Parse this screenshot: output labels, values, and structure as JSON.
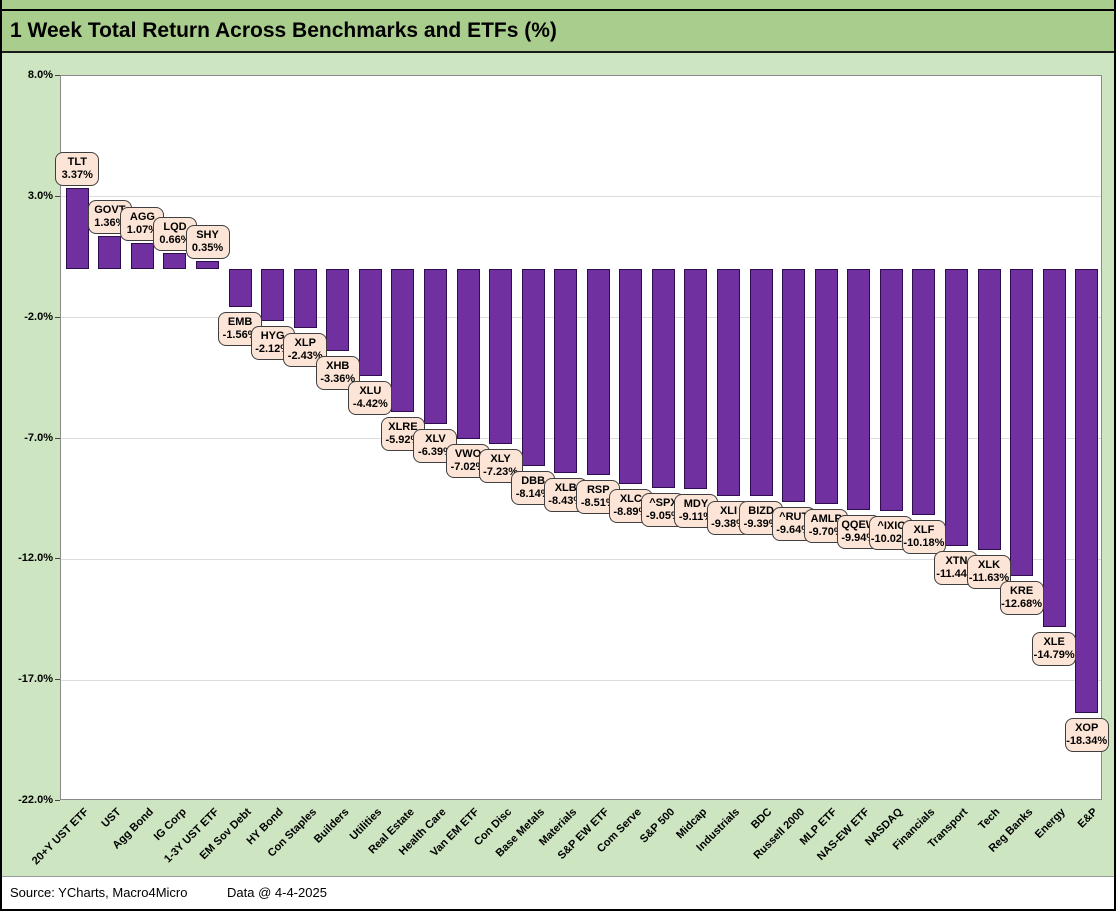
{
  "title": "1 Week Total Return Across Benchmarks and ETFs (%)",
  "footer": {
    "source": "Source: YCharts, Macro4Micro",
    "data_date": "Data @ 4-4-2025"
  },
  "colors": {
    "bar_fill": "#7030A0",
    "bar_border": "#2E0E4F",
    "label_box_fill": "#FCE4D6",
    "label_box_border": "#3F3F3F",
    "banner_green": "#A9CD8C",
    "body_green": "#CDE5C1",
    "plot_background": "#FFFFFF",
    "gridline": "#DCDCDC"
  },
  "chart_data": {
    "type": "bar",
    "title": "1 Week Total Return Across Benchmarks and ETFs (%)",
    "xlabel": "",
    "ylabel": "",
    "ylim": [
      -22,
      8
    ],
    "grid": "horizontal",
    "legend": "none",
    "y_ticks": [
      {
        "label": "8.0%",
        "value": 8
      },
      {
        "label": "3.0%",
        "value": 3
      },
      {
        "label": "-2.0%",
        "value": -2
      },
      {
        "label": "-7.0%",
        "value": -7
      },
      {
        "label": "-12.0%",
        "value": -12
      },
      {
        "label": "-17.0%",
        "value": -17
      },
      {
        "label": "-22.0%",
        "value": -22
      }
    ],
    "categories": [
      "20+Y UST ETF",
      "UST",
      "Agg Bond",
      "IG Corp",
      "1-3Y UST ETF",
      "EM Sov Debt",
      "HY Bond",
      "Con Staples",
      "Builders",
      "Utilities",
      "Real Estate",
      "Health Care",
      "Van EM ETF",
      "Con Disc",
      "Base Metals",
      "Materials",
      "S&P EW ETF",
      "Com Serve",
      "S&P 500",
      "Midcap",
      "Industrials",
      "BDC",
      "Russell 2000",
      "MLP ETF",
      "NAS-EW ETF",
      "NASDAQ",
      "Financials",
      "Transport",
      "Tech",
      "Reg Banks",
      "Energy",
      "E&P"
    ],
    "tickers": [
      "TLT",
      "GOVT",
      "AGG",
      "LQD",
      "SHY",
      "EMB",
      "HYG",
      "XLP",
      "XHB",
      "XLU",
      "XLRE",
      "XLV",
      "VWO",
      "XLY",
      "DBB",
      "XLB",
      "RSP",
      "XLC",
      "^SPX",
      "MDY",
      "XLI",
      "BIZD",
      "^RUT",
      "AMLP",
      "QQEW",
      "^IXIC",
      "XLF",
      "XTN",
      "XLK",
      "KRE",
      "XLE",
      "XOP"
    ],
    "values": [
      3.37,
      1.36,
      1.07,
      0.66,
      0.35,
      -1.56,
      -2.12,
      -2.43,
      -3.36,
      -4.42,
      -5.92,
      -6.39,
      -7.02,
      -7.23,
      -8.14,
      -8.43,
      -8.51,
      -8.89,
      -9.05,
      -9.11,
      -9.38,
      -9.39,
      -9.64,
      -9.7,
      -9.94,
      -10.02,
      -10.18,
      -11.44,
      -11.63,
      -12.68,
      -14.79,
      -18.34
    ],
    "value_labels": [
      "3.37%",
      "1.36%",
      "1.07%",
      "0.66%",
      "0.35%",
      "-1.56%",
      "-2.12%",
      "-2.43%",
      "-3.36%",
      "-4.42%",
      "-5.92%",
      "-6.39%",
      "-7.02%",
      "-7.23%",
      "-8.14%",
      "-8.43%",
      "-8.51%",
      "-8.89%",
      "-9.05%",
      "-9.11%",
      "-9.38%",
      "-9.39%",
      "-9.64%",
      "-9.70%",
      "-9.94%",
      "-10.02%",
      "-10.18%",
      "-11.44%",
      "-11.63%",
      "-12.68%",
      "-14.79%",
      "-18.34%"
    ]
  }
}
